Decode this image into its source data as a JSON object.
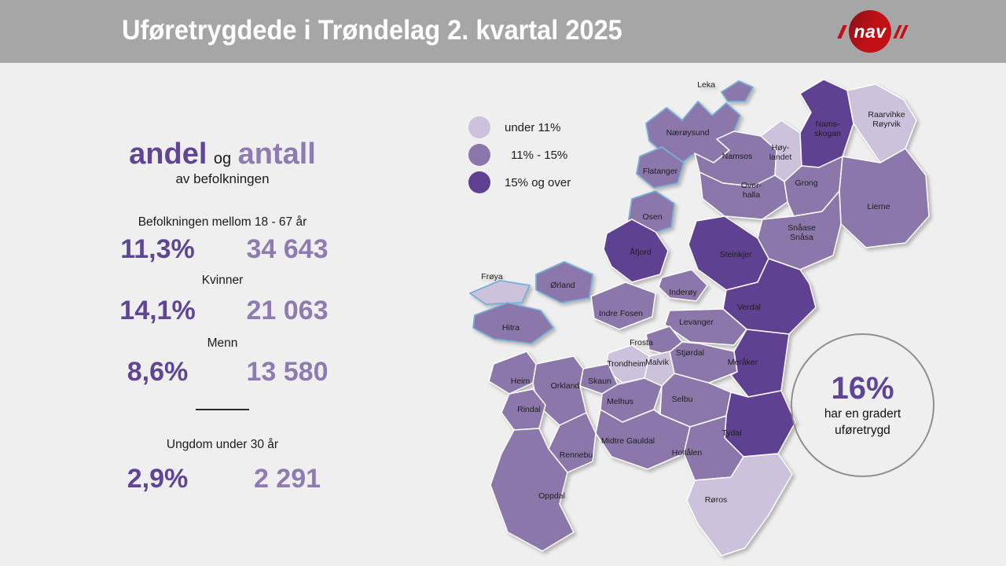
{
  "header": {
    "title": "Uføretrygdede i Trøndelag 2. kvartal 2025",
    "logo_text": "nav"
  },
  "stats": {
    "title": {
      "part1": "andel",
      "conjunction": "og",
      "part2": "antall"
    },
    "subtitle": "av befolkningen",
    "rows": [
      {
        "label": "Befolkningen mellom 18 - 67 år",
        "share": "11,3%",
        "count": "34 643"
      },
      {
        "label": "Kvinner",
        "share": "14,1%",
        "count": "21 063"
      },
      {
        "label": "Menn",
        "share": "8,6%",
        "count": "13 580"
      },
      {
        "label": "Ungdom under 30 år",
        "share": "2,9%",
        "count": "2 291"
      }
    ]
  },
  "legend": {
    "items": [
      {
        "label": "under 11%",
        "category": "light"
      },
      {
        "label": "11% - 15%",
        "category": "medium"
      },
      {
        "label": "15% og over",
        "category": "dark"
      }
    ]
  },
  "callout": {
    "value": "16%",
    "line1": "har en gradert",
    "line2": "uføretrygd"
  },
  "colors": {
    "background": "#f0eff0",
    "header_gray": "#a7a6a6",
    "nav_red": "#c21017",
    "light": "#cdc2dc",
    "medium": "#8b77aa",
    "dark": "#5e4191",
    "share_text": "#5f4596",
    "count_text": "#8e7cb0",
    "coast_blue": "#79b0d8"
  },
  "map": {
    "municipalities": [
      {
        "id": "leka",
        "name": "Leka",
        "lines": [
          "Leka"
        ],
        "category": "medium"
      },
      {
        "id": "naeroysund",
        "name": "Nærøysund",
        "lines": [
          "Nærøysund"
        ],
        "category": "medium"
      },
      {
        "id": "namsos",
        "name": "Namsos",
        "lines": [
          "Namsos"
        ],
        "category": "medium"
      },
      {
        "id": "hoylandet",
        "name": "Høylandet",
        "lines": [
          "Høy-",
          "landet"
        ],
        "category": "light"
      },
      {
        "id": "namsskogan",
        "name": "Namsskogan",
        "lines": [
          "Nams-",
          "skogan"
        ],
        "category": "dark"
      },
      {
        "id": "royrvik",
        "name": "Raarvihke Røyrvik",
        "lines": [
          "Raarvihke",
          "Røyrvik"
        ],
        "category": "light"
      },
      {
        "id": "flatanger",
        "name": "Flatanger",
        "lines": [
          "Flatanger"
        ],
        "category": "medium"
      },
      {
        "id": "overhalla",
        "name": "Overhalla",
        "lines": [
          "Over-",
          "halla"
        ],
        "category": "medium"
      },
      {
        "id": "grong",
        "name": "Grong",
        "lines": [
          "Grong"
        ],
        "category": "medium"
      },
      {
        "id": "lierne",
        "name": "Lierne",
        "lines": [
          "Lierne"
        ],
        "category": "medium"
      },
      {
        "id": "osen",
        "name": "Osen",
        "lines": [
          "Osen"
        ],
        "category": "medium"
      },
      {
        "id": "snasa",
        "name": "Snåase Snåsa",
        "lines": [
          "Snåase",
          "Snåsa"
        ],
        "category": "medium"
      },
      {
        "id": "afjord",
        "name": "Åfjord",
        "lines": [
          "Åfjord"
        ],
        "category": "dark"
      },
      {
        "id": "steinkjer",
        "name": "Steinkjer",
        "lines": [
          "Steinkjer"
        ],
        "category": "dark"
      },
      {
        "id": "inderoy",
        "name": "Inderøy",
        "lines": [
          "Inderøy"
        ],
        "category": "medium"
      },
      {
        "id": "verdal",
        "name": "Verdal",
        "lines": [
          "Verdal"
        ],
        "category": "dark"
      },
      {
        "id": "levanger",
        "name": "Levanger",
        "lines": [
          "Levanger"
        ],
        "category": "medium"
      },
      {
        "id": "indrefosen",
        "name": "Indre Fosen",
        "lines": [
          "Indre Fosen"
        ],
        "category": "medium"
      },
      {
        "id": "orland",
        "name": "Ørland",
        "lines": [
          "Ørland"
        ],
        "category": "medium"
      },
      {
        "id": "froya",
        "name": "Frøya",
        "lines": [
          "Frøya"
        ],
        "category": "light"
      },
      {
        "id": "hitra",
        "name": "Hitra",
        "lines": [
          "Hitra"
        ],
        "category": "medium"
      },
      {
        "id": "frosta",
        "name": "Frosta",
        "lines": [
          "Frosta"
        ],
        "category": "medium"
      },
      {
        "id": "stjordal",
        "name": "Stjørdal",
        "lines": [
          "Stjørdal"
        ],
        "category": "medium"
      },
      {
        "id": "meraker",
        "name": "Meråker",
        "lines": [
          "Meråker"
        ],
        "category": "dark"
      },
      {
        "id": "trondheim",
        "name": "Trondheim",
        "lines": [
          "Trondheim"
        ],
        "category": "light"
      },
      {
        "id": "malvik",
        "name": "Malvik",
        "lines": [
          "Malvik"
        ],
        "category": "light"
      },
      {
        "id": "skaun",
        "name": "Skaun",
        "lines": [
          "Skaun"
        ],
        "category": "medium"
      },
      {
        "id": "orkland",
        "name": "Orkland",
        "lines": [
          "Orkland"
        ],
        "category": "medium"
      },
      {
        "id": "heim",
        "name": "Heim",
        "lines": [
          "Heim"
        ],
        "category": "medium"
      },
      {
        "id": "melhus",
        "name": "Melhus",
        "lines": [
          "Melhus"
        ],
        "category": "medium"
      },
      {
        "id": "selbu",
        "name": "Selbu",
        "lines": [
          "Selbu"
        ],
        "category": "medium"
      },
      {
        "id": "rindal",
        "name": "Rindal",
        "lines": [
          "Rindal"
        ],
        "category": "medium"
      },
      {
        "id": "tydal",
        "name": "Tydal",
        "lines": [
          "Tydal"
        ],
        "category": "dark"
      },
      {
        "id": "midtregauldal",
        "name": "Midtre Gauldal",
        "lines": [
          "Midtre Gauldal"
        ],
        "category": "medium"
      },
      {
        "id": "holtalen",
        "name": "Holtålen",
        "lines": [
          "Holtålen"
        ],
        "category": "medium"
      },
      {
        "id": "rennebu",
        "name": "Rennebu",
        "lines": [
          "Rennebu"
        ],
        "category": "medium"
      },
      {
        "id": "oppdal",
        "name": "Oppdal",
        "lines": [
          "Oppdal"
        ],
        "category": "medium"
      },
      {
        "id": "roros",
        "name": "Røros",
        "lines": [
          "Røros"
        ],
        "category": "light"
      }
    ]
  }
}
